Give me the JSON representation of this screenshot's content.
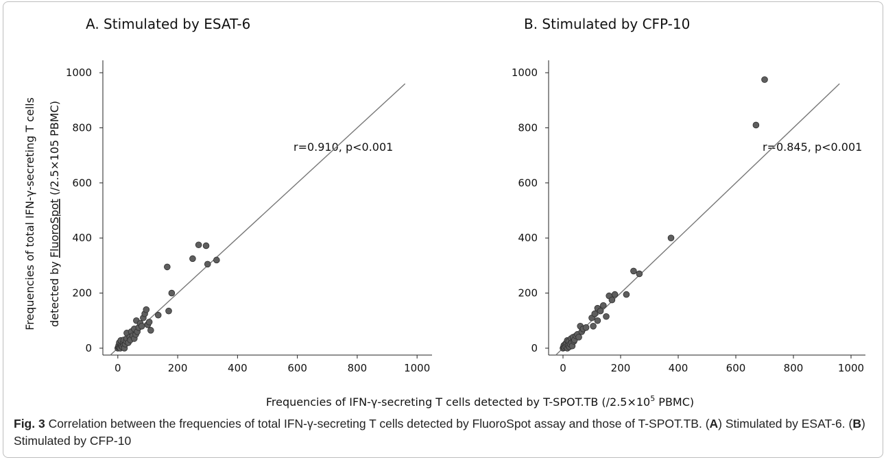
{
  "figure": {
    "xlabel_text": "Frequencies of IFN-γ-secreting T cells detected by T-SPOT.TB (/2.5×10",
    "xlabel_sup": "5",
    "xlabel_end": " PBMC)",
    "ylabel_line1": "Frequencies of total IFN-γ-secreting T cells",
    "ylabel_line2_pre": "detected by ",
    "ylabel_line2_underlined": "FluoroSpot",
    "ylabel_line2_post": " (/2.5×105 PBMC)"
  },
  "caption": {
    "label": "Fig. 3",
    "text1": " Correlation between the frequencies of total IFN-γ-secreting T cells detected by FluoroSpot assay and those of T-SPOT.TB. (",
    "bold_a": "A",
    "text2": ") Stimulated by ESAT-6. (",
    "bold_b": "B",
    "text3": ") Stimulated by CFP-10"
  },
  "chart_data": [
    {
      "type": "scatter",
      "title": "A. Stimulated by ESAT-6",
      "annotation": "r=0.910, p<0.001",
      "xlim": [
        -50,
        1050
      ],
      "ylim": [
        -25,
        1045
      ],
      "xticks": [
        0,
        200,
        400,
        600,
        800,
        1000
      ],
      "yticks": [
        0,
        200,
        400,
        600,
        800,
        1000
      ],
      "reference_line": "y = x",
      "points": [
        [
          0,
          0
        ],
        [
          2,
          5
        ],
        [
          3,
          10
        ],
        [
          5,
          2
        ],
        [
          5,
          20
        ],
        [
          8,
          0
        ],
        [
          10,
          15
        ],
        [
          10,
          28
        ],
        [
          12,
          8
        ],
        [
          15,
          5
        ],
        [
          18,
          20
        ],
        [
          20,
          10
        ],
        [
          20,
          30
        ],
        [
          22,
          0
        ],
        [
          25,
          15
        ],
        [
          28,
          25
        ],
        [
          30,
          35
        ],
        [
          30,
          55
        ],
        [
          35,
          20
        ],
        [
          40,
          40
        ],
        [
          42,
          30
        ],
        [
          45,
          60
        ],
        [
          50,
          45
        ],
        [
          55,
          35
        ],
        [
          55,
          70
        ],
        [
          60,
          50
        ],
        [
          62,
          100
        ],
        [
          65,
          60
        ],
        [
          70,
          75
        ],
        [
          75,
          90
        ],
        [
          80,
          80
        ],
        [
          85,
          110
        ],
        [
          90,
          125
        ],
        [
          95,
          140
        ],
        [
          100,
          85
        ],
        [
          105,
          95
        ],
        [
          110,
          65
        ],
        [
          135,
          120
        ],
        [
          165,
          295
        ],
        [
          170,
          135
        ],
        [
          180,
          200
        ],
        [
          250,
          325
        ],
        [
          270,
          375
        ],
        [
          295,
          372
        ],
        [
          300,
          305
        ],
        [
          330,
          320
        ]
      ]
    },
    {
      "type": "scatter",
      "title": "B. Stimulated by CFP-10",
      "annotation": "r=0.845, p<0.001",
      "xlim": [
        -50,
        1050
      ],
      "ylim": [
        -25,
        1045
      ],
      "xticks": [
        0,
        200,
        400,
        600,
        800,
        1000
      ],
      "yticks": [
        0,
        200,
        400,
        600,
        800,
        1000
      ],
      "reference_line": "y = x",
      "points": [
        [
          0,
          0
        ],
        [
          2,
          5
        ],
        [
          3,
          10
        ],
        [
          5,
          2
        ],
        [
          8,
          15
        ],
        [
          10,
          5
        ],
        [
          12,
          20
        ],
        [
          15,
          0
        ],
        [
          15,
          28
        ],
        [
          18,
          10
        ],
        [
          20,
          25
        ],
        [
          22,
          5
        ],
        [
          25,
          15
        ],
        [
          28,
          35
        ],
        [
          30,
          20
        ],
        [
          32,
          8
        ],
        [
          35,
          40
        ],
        [
          38,
          25
        ],
        [
          40,
          30
        ],
        [
          45,
          45
        ],
        [
          50,
          50
        ],
        [
          55,
          40
        ],
        [
          60,
          80
        ],
        [
          65,
          60
        ],
        [
          70,
          70
        ],
        [
          80,
          75
        ],
        [
          100,
          110
        ],
        [
          105,
          80
        ],
        [
          110,
          125
        ],
        [
          120,
          100
        ],
        [
          120,
          145
        ],
        [
          130,
          135
        ],
        [
          140,
          155
        ],
        [
          150,
          115
        ],
        [
          160,
          190
        ],
        [
          170,
          175
        ],
        [
          180,
          195
        ],
        [
          220,
          195
        ],
        [
          245,
          280
        ],
        [
          265,
          270
        ],
        [
          375,
          400
        ],
        [
          670,
          810
        ],
        [
          700,
          975
        ]
      ]
    }
  ]
}
